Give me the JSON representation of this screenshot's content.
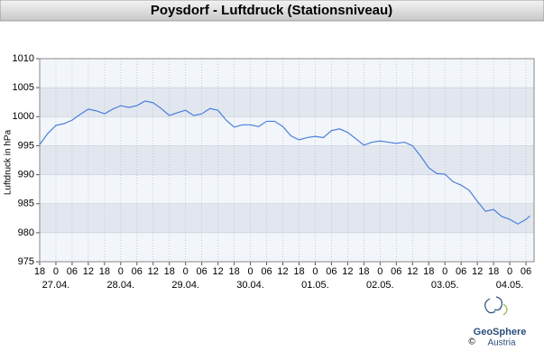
{
  "chart_data": {
    "type": "line",
    "title": "Poysdorf - Luftdruck (Stationsniveau)",
    "y_label": "Luftdruck in hPa",
    "x": [
      0,
      3,
      6,
      9,
      12,
      15,
      18,
      21,
      24,
      27,
      30,
      33,
      36,
      39,
      42,
      45,
      48,
      51,
      54,
      57,
      60,
      63,
      66,
      69,
      72,
      75,
      78,
      81,
      84,
      87,
      90,
      93,
      96,
      99,
      102,
      105,
      108,
      111,
      114,
      117,
      120,
      123,
      126,
      129,
      132,
      135,
      138,
      141,
      144,
      147,
      150,
      153,
      156,
      159,
      162,
      165,
      168,
      171,
      174,
      177,
      180,
      181.5
    ],
    "series": [
      {
        "color": "#4a7fdc",
        "values": [
          995.2,
          997.1,
          998.5,
          998.8,
          999.4,
          1000.4,
          1001.3,
          1001.0,
          1000.5,
          1001.3,
          1001.9,
          1001.6,
          1001.9,
          1002.7,
          1002.4,
          1001.4,
          1000.2,
          1000.7,
          1001.1,
          1000.2,
          1000.5,
          1001.4,
          1001.1,
          999.4,
          998.2,
          998.6,
          998.6,
          998.3,
          999.2,
          999.2,
          998.3,
          996.7,
          996.0,
          996.4,
          996.6,
          996.4,
          997.6,
          997.9,
          997.3,
          996.2,
          995.1,
          995.6,
          995.8,
          995.6,
          995.4,
          995.6,
          995.0,
          993.2,
          991.2,
          990.2,
          990.1,
          988.8,
          988.2,
          987.3,
          985.4,
          983.7,
          984.0,
          982.8,
          982.3,
          981.5,
          982.3,
          982.9
        ]
      }
    ],
    "xlim": [
      0,
      183
    ],
    "xticks": [
      {
        "value": 0,
        "label": "18"
      },
      {
        "value": 6,
        "label": "0"
      },
      {
        "value": 12,
        "label": "06"
      },
      {
        "value": 18,
        "label": "12"
      },
      {
        "value": 24,
        "label": "18"
      },
      {
        "value": 30,
        "label": "0"
      },
      {
        "value": 36,
        "label": "06"
      },
      {
        "value": 42,
        "label": "12"
      },
      {
        "value": 48,
        "label": "18"
      },
      {
        "value": 54,
        "label": "0"
      },
      {
        "value": 60,
        "label": "06"
      },
      {
        "value": 66,
        "label": "12"
      },
      {
        "value": 72,
        "label": "18"
      },
      {
        "value": 78,
        "label": "0"
      },
      {
        "value": 84,
        "label": "06"
      },
      {
        "value": 90,
        "label": "12"
      },
      {
        "value": 96,
        "label": "18"
      },
      {
        "value": 102,
        "label": "0"
      },
      {
        "value": 108,
        "label": "06"
      },
      {
        "value": 114,
        "label": "12"
      },
      {
        "value": 120,
        "label": "18"
      },
      {
        "value": 126,
        "label": "0"
      },
      {
        "value": 132,
        "label": "06"
      },
      {
        "value": 138,
        "label": "12"
      },
      {
        "value": 144,
        "label": "18"
      },
      {
        "value": 150,
        "label": "0"
      },
      {
        "value": 156,
        "label": "06"
      },
      {
        "value": 162,
        "label": "12"
      },
      {
        "value": 168,
        "label": "18"
      },
      {
        "value": 174,
        "label": "0"
      },
      {
        "value": 180,
        "label": "06"
      }
    ],
    "xdates": [
      {
        "value": 6,
        "label": "27.04."
      },
      {
        "value": 30,
        "label": "28.04."
      },
      {
        "value": 54,
        "label": "29.04."
      },
      {
        "value": 78,
        "label": "30.04."
      },
      {
        "value": 102,
        "label": "01.05."
      },
      {
        "value": 126,
        "label": "02.05."
      },
      {
        "value": 150,
        "label": "03.05."
      },
      {
        "value": 174,
        "label": "04.05."
      }
    ],
    "ylim": [
      975,
      1010
    ],
    "yticks": [
      975,
      980,
      985,
      990,
      995,
      1000,
      1005,
      1010
    ],
    "bands": true,
    "grid": true
  },
  "logo": {
    "name": "GeoSphere",
    "sub": "Austria",
    "copyright": "©"
  }
}
